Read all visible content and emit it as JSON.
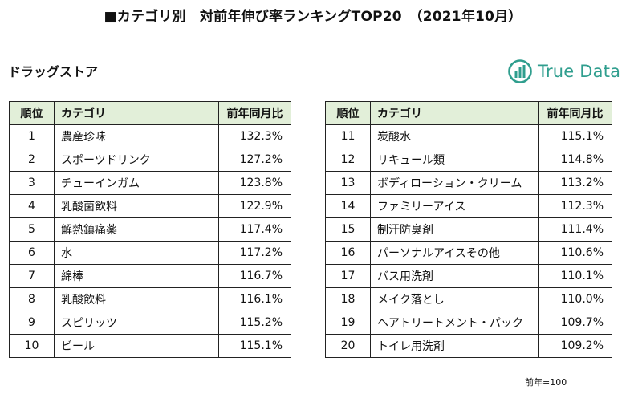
{
  "title": "■カテゴリ別　対前年伸び率ランキングTOP20　（2021年10月）",
  "subtitle": "ドラッグストア",
  "logo": {
    "text": "True Data",
    "icon": "bar-chart-circle-icon",
    "color": "#2f9e8e"
  },
  "table_header": {
    "rank": "順位",
    "category": "カテゴリ",
    "value": "前年同月比"
  },
  "header_bg": "#e2efd9",
  "rows_left": [
    {
      "rank": "1",
      "category": "農産珍味",
      "value": "132.3%"
    },
    {
      "rank": "2",
      "category": "スポーツドリンク",
      "value": "127.2%"
    },
    {
      "rank": "3",
      "category": "チューインガム",
      "value": "123.8%"
    },
    {
      "rank": "4",
      "category": "乳酸菌飲料",
      "value": "122.9%"
    },
    {
      "rank": "5",
      "category": "解熱鎮痛薬",
      "value": "117.4%"
    },
    {
      "rank": "6",
      "category": "水",
      "value": "117.2%"
    },
    {
      "rank": "7",
      "category": "綿棒",
      "value": "116.7%"
    },
    {
      "rank": "8",
      "category": "乳酸飲料",
      "value": "116.1%"
    },
    {
      "rank": "9",
      "category": "スピリッツ",
      "value": "115.2%"
    },
    {
      "rank": "10",
      "category": "ビール",
      "value": "115.1%"
    }
  ],
  "rows_right": [
    {
      "rank": "11",
      "category": "炭酸水",
      "value": "115.1%"
    },
    {
      "rank": "12",
      "category": "リキュール類",
      "value": "114.8%"
    },
    {
      "rank": "13",
      "category": "ボディローション・クリーム",
      "value": "113.2%"
    },
    {
      "rank": "14",
      "category": "ファミリーアイス",
      "value": "112.3%"
    },
    {
      "rank": "15",
      "category": "制汗防臭剤",
      "value": "111.4%"
    },
    {
      "rank": "16",
      "category": "パーソナルアイスその他",
      "value": "110.6%"
    },
    {
      "rank": "17",
      "category": "バス用洗剤",
      "value": "110.1%"
    },
    {
      "rank": "18",
      "category": "メイク落とし",
      "value": "110.0%"
    },
    {
      "rank": "19",
      "category": "ヘアトリートメント・パック",
      "value": "109.7%"
    },
    {
      "rank": "20",
      "category": "トイレ用洗剤",
      "value": "109.2%"
    }
  ],
  "note": "前年=100"
}
